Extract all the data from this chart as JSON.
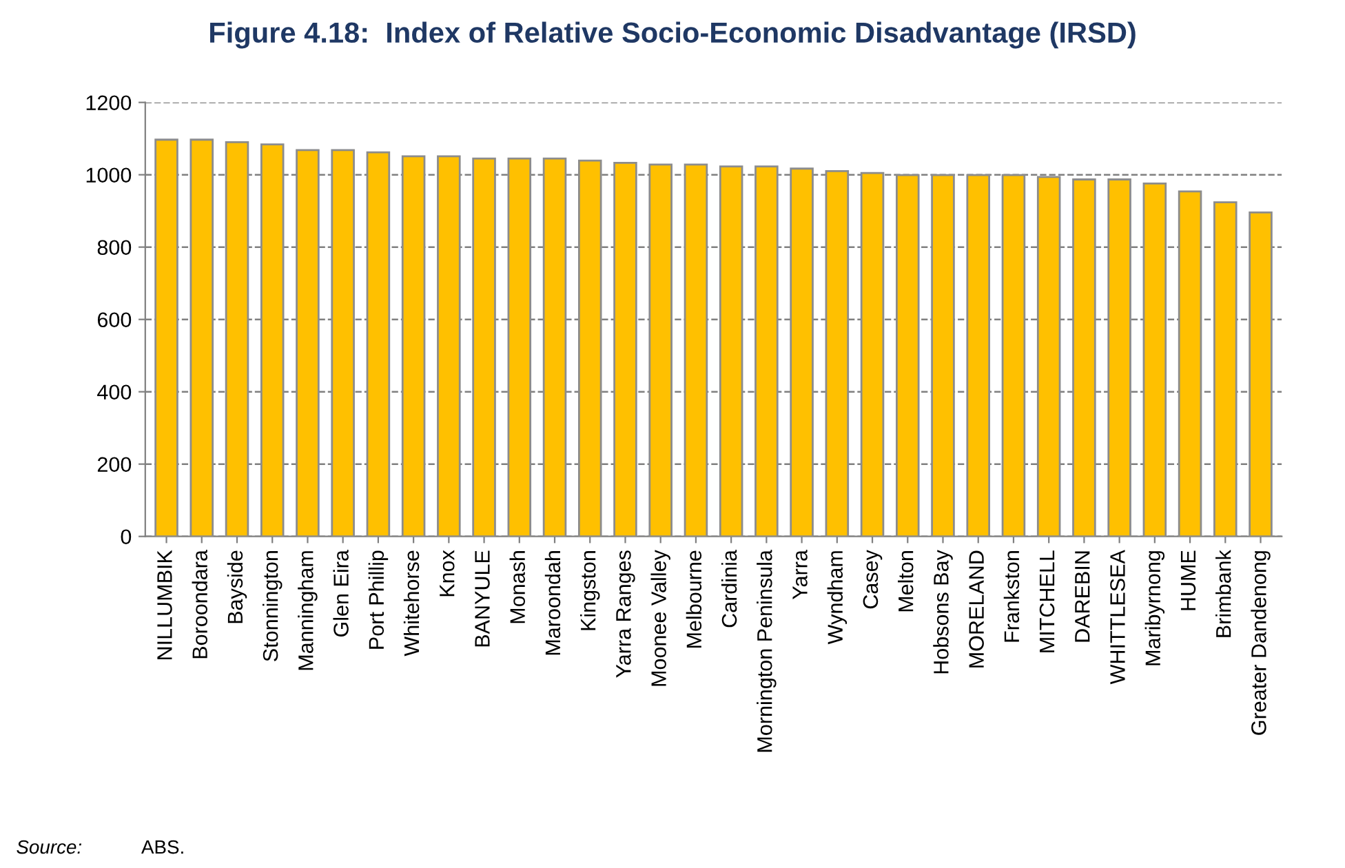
{
  "chart_data": {
    "type": "bar",
    "title": "Figure 4.18:  Index of Relative Socio-Economic Disadvantage (IRSD)",
    "categories": [
      "NILLUMBIK",
      "Boroondara",
      "Bayside",
      "Stonnington",
      "Manningham",
      "Glen Eira",
      "Port Phillip",
      "Whitehorse",
      "Knox",
      "BANYULE",
      "Monash",
      "Maroondah",
      "Kingston",
      "Yarra Ranges",
      "Moonee Valley",
      "Melbourne",
      "Cardinia",
      "Mornington Peninsula",
      "Yarra",
      "Wyndham",
      "Casey",
      "Melton",
      "Hobsons Bay",
      "MORELAND",
      "Frankston",
      "MITCHELL",
      "DAREBIN",
      "WHITTLESEA",
      "Maribyrnong",
      "HUME",
      "Brimbank",
      "Greater Dandenong"
    ],
    "values": [
      1097,
      1097,
      1090,
      1084,
      1068,
      1068,
      1062,
      1051,
      1051,
      1045,
      1045,
      1045,
      1039,
      1033,
      1028,
      1028,
      1023,
      1023,
      1017,
      1010,
      1005,
      999,
      999,
      999,
      999,
      994,
      987,
      987,
      976,
      954,
      924,
      896
    ],
    "color": "#ffc000",
    "ylim": [
      0,
      1200
    ],
    "yticks": [
      0,
      200,
      400,
      600,
      800,
      1000,
      1200
    ],
    "grid": "y",
    "annotations": [
      "Source:",
      "ABS."
    ]
  }
}
